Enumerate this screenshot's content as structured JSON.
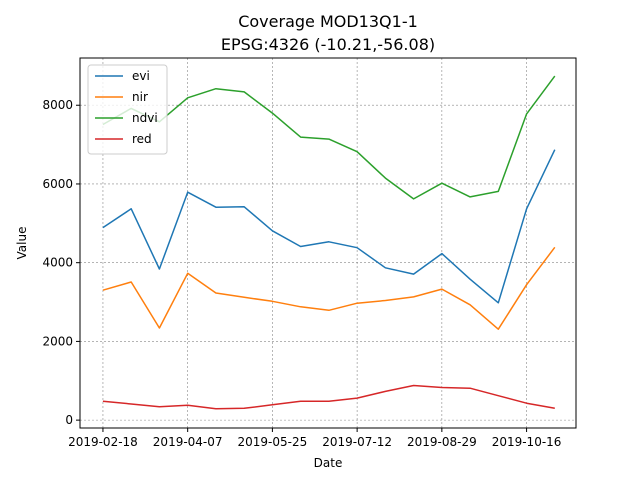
{
  "chart_data": {
    "type": "line",
    "title": "Coverage MOD13Q1-1",
    "subtitle": "EPSG:4326 (-10.21,-56.08)",
    "xlabel": "Date",
    "ylabel": "Value",
    "x": [
      "2019-02-18",
      "2019-03-06",
      "2019-03-22",
      "2019-04-07",
      "2019-04-23",
      "2019-05-09",
      "2019-05-25",
      "2019-06-10",
      "2019-06-26",
      "2019-07-12",
      "2019-07-28",
      "2019-08-13",
      "2019-08-29",
      "2019-09-14",
      "2019-09-30",
      "2019-10-16",
      "2019-11-01"
    ],
    "xticks": [
      "2019-02-18",
      "2019-04-07",
      "2019-05-25",
      "2019-07-12",
      "2019-08-29",
      "2019-10-16"
    ],
    "yticks": [
      0,
      2000,
      4000,
      6000,
      8000
    ],
    "ylim": [
      -200,
      9200
    ],
    "xlim": [
      "2019-02-05",
      "2019-11-13"
    ],
    "grid": true,
    "legend_position": "upper-left",
    "series": [
      {
        "name": "evi",
        "color": "#1f77b4",
        "values": [
          4890,
          5370,
          3840,
          5790,
          5410,
          5420,
          4810,
          4410,
          4530,
          4380,
          3870,
          3710,
          4230,
          3580,
          2980,
          5370,
          6870
        ]
      },
      {
        "name": "nir",
        "color": "#ff7f0e",
        "values": [
          3300,
          3510,
          2340,
          3730,
          3230,
          3120,
          3020,
          2880,
          2790,
          2970,
          3040,
          3130,
          3330,
          2930,
          2310,
          3440,
          4390
        ]
      },
      {
        "name": "ndvi",
        "color": "#2ca02c",
        "values": [
          7510,
          7920,
          7580,
          8190,
          8420,
          8340,
          7800,
          7190,
          7140,
          6820,
          6150,
          5620,
          6020,
          5670,
          5810,
          7780,
          8740
        ]
      },
      {
        "name": "red",
        "color": "#d62728",
        "values": [
          480,
          410,
          340,
          380,
          290,
          300,
          390,
          480,
          480,
          560,
          730,
          880,
          830,
          810,
          620,
          430,
          300
        ]
      }
    ]
  }
}
